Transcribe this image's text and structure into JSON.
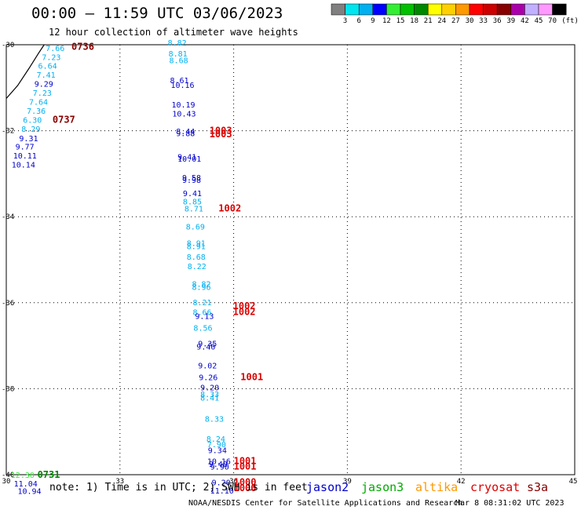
{
  "header": {
    "title": "00:00 — 11:59 UTC 03/06/2023",
    "subtitle": "12 hour collection of altimeter wave heights"
  },
  "colorbar": {
    "unit_label": "(ft)",
    "bins": [
      {
        "label": "3",
        "color": "#808080"
      },
      {
        "label": "6",
        "color": "#00e5ee"
      },
      {
        "label": "9",
        "color": "#00b0f0"
      },
      {
        "label": "12",
        "color": "#0000ff"
      },
      {
        "label": "15",
        "color": "#33ee33"
      },
      {
        "label": "18",
        "color": "#00c000"
      },
      {
        "label": "21",
        "color": "#008800"
      },
      {
        "label": "24",
        "color": "#ffff00"
      },
      {
        "label": "27",
        "color": "#ffd000"
      },
      {
        "label": "30",
        "color": "#ff9900"
      },
      {
        "label": "33",
        "color": "#ff0000"
      },
      {
        "label": "36",
        "color": "#cc0000"
      },
      {
        "label": "39",
        "color": "#880000"
      },
      {
        "label": "42",
        "color": "#aa00aa"
      },
      {
        "label": "45",
        "color": "#c0b0ff"
      },
      {
        "label": "70",
        "color": "#ff99ff"
      },
      {
        "label": "",
        "color": "#000000"
      }
    ]
  },
  "footer": {
    "note": "note: 1) Time is in UTC; 2) SWH is in feet",
    "credit": "NOAA/NESDIS Center for Satellite Applications and Research",
    "timestamp": "Mar  8 08:31:02 UTC 2023"
  },
  "legend": [
    {
      "name": "jason2",
      "color": "#0000cc"
    },
    {
      "name": "jason3",
      "color": "#00aa00"
    },
    {
      "name": "altika",
      "color": "#ff9900"
    },
    {
      "name": "cryosat",
      "color": "#dd0000"
    },
    {
      "name": "s3a",
      "color": "#880000"
    }
  ],
  "chart_data": {
    "type": "scatter",
    "title": "00:00 — 11:59 UTC 03/06/2023",
    "subtitle": "12 hour collection of altimeter wave heights",
    "x_axis": {
      "range": [
        30,
        45
      ],
      "ticks": [
        "30",
        "33",
        "36",
        "39",
        "42",
        "45"
      ]
    },
    "y_axis": {
      "range": [
        -40,
        -30
      ],
      "ticks": [
        "-30",
        "-32",
        "-34",
        "-36",
        "-38",
        "-40"
      ]
    },
    "grid": true,
    "observations": [
      {
        "x": 31.04,
        "y": -30.15,
        "label": "7.66",
        "color": "#00b0f0"
      },
      {
        "x": 30.94,
        "y": -30.36,
        "label": "7.23",
        "color": "#00b0f0"
      },
      {
        "x": 30.84,
        "y": -30.56,
        "label": "6.64",
        "color": "#00b0f0"
      },
      {
        "x": 30.8,
        "y": -30.77,
        "label": "7.41",
        "color": "#00b0f0"
      },
      {
        "x": 30.74,
        "y": -30.98,
        "label": "9.29",
        "color": "#0000cc"
      },
      {
        "x": 30.7,
        "y": -31.19,
        "label": "7.23",
        "color": "#00b0f0"
      },
      {
        "x": 30.6,
        "y": -31.4,
        "label": "7.64",
        "color": "#00b0f0"
      },
      {
        "x": 30.54,
        "y": -31.61,
        "label": "7.36",
        "color": "#00b0f0"
      },
      {
        "x": 30.44,
        "y": -31.82,
        "label": "6.30",
        "color": "#00b0f0"
      },
      {
        "x": 30.4,
        "y": -32.03,
        "label": "8.29",
        "color": "#00b0f0"
      },
      {
        "x": 30.34,
        "y": -32.24,
        "label": "9.31",
        "color": "#0000cc"
      },
      {
        "x": 30.24,
        "y": -32.44,
        "label": "9.77",
        "color": "#0000cc"
      },
      {
        "x": 30.18,
        "y": -32.65,
        "label": "10.11",
        "color": "#0000cc"
      },
      {
        "x": 30.14,
        "y": -32.86,
        "label": "10.14",
        "color": "#0000cc"
      },
      {
        "x": 34.26,
        "y": -30.02,
        "label": "8.82",
        "color": "#00b0f0"
      },
      {
        "x": 34.28,
        "y": -30.27,
        "label": "8.81",
        "color": "#00b0f0"
      },
      {
        "x": 34.3,
        "y": -30.43,
        "label": "8.68",
        "color": "#00b0f0"
      },
      {
        "x": 34.32,
        "y": -30.89,
        "label": "8.61",
        "color": "#0000cc"
      },
      {
        "x": 34.34,
        "y": -31.0,
        "label": "10.16",
        "color": "#0000cc"
      },
      {
        "x": 34.36,
        "y": -31.46,
        "label": "10.19",
        "color": "#0000cc"
      },
      {
        "x": 34.38,
        "y": -31.67,
        "label": "10.43",
        "color": "#0000cc"
      },
      {
        "x": 34.48,
        "y": -32.08,
        "label": "8.44",
        "color": "#0000cc"
      },
      {
        "x": 34.48,
        "y": -32.13,
        "label": "9.88",
        "color": "#0000cc"
      },
      {
        "x": 34.52,
        "y": -32.67,
        "label": "9.41",
        "color": "#0000cc"
      },
      {
        "x": 34.52,
        "y": -32.72,
        "label": "10.01",
        "color": "#0000cc"
      },
      {
        "x": 34.64,
        "y": -33.16,
        "label": "9.58",
        "color": "#0000cc"
      },
      {
        "x": 34.64,
        "y": -33.21,
        "label": "9.98",
        "color": "#0000cc"
      },
      {
        "x": 34.66,
        "y": -33.52,
        "label": "9.41",
        "color": "#0000cc"
      },
      {
        "x": 34.66,
        "y": -33.71,
        "label": "8.85",
        "color": "#00b0f0"
      },
      {
        "x": 34.7,
        "y": -33.88,
        "label": "8.71",
        "color": "#00b0f0"
      },
      {
        "x": 34.74,
        "y": -34.3,
        "label": "8.69",
        "color": "#00b0f0"
      },
      {
        "x": 34.76,
        "y": -34.68,
        "label": "8.91",
        "color": "#00b0f0"
      },
      {
        "x": 34.76,
        "y": -34.75,
        "label": "8.91",
        "color": "#00b0f0"
      },
      {
        "x": 34.76,
        "y": -35.0,
        "label": "8.68",
        "color": "#00b0f0"
      },
      {
        "x": 34.78,
        "y": -35.22,
        "label": "8.22",
        "color": "#00b0f0"
      },
      {
        "x": 34.9,
        "y": -35.63,
        "label": "8.82",
        "color": "#00b0f0"
      },
      {
        "x": 34.9,
        "y": -35.7,
        "label": "8.96",
        "color": "#00b0f0"
      },
      {
        "x": 34.92,
        "y": -36.06,
        "label": "8.21",
        "color": "#00b0f0"
      },
      {
        "x": 34.92,
        "y": -36.29,
        "label": "8.66",
        "color": "#00b0f0"
      },
      {
        "x": 34.98,
        "y": -36.38,
        "label": "9.13",
        "color": "#0000cc"
      },
      {
        "x": 34.94,
        "y": -36.65,
        "label": "8.56",
        "color": "#00b0f0"
      },
      {
        "x": 35.06,
        "y": -37.02,
        "label": "9.35",
        "color": "#0000cc"
      },
      {
        "x": 35.02,
        "y": -37.09,
        "label": "9.40",
        "color": "#0000cc"
      },
      {
        "x": 35.06,
        "y": -37.53,
        "label": "9.02",
        "color": "#0000cc"
      },
      {
        "x": 35.08,
        "y": -37.8,
        "label": "9.26",
        "color": "#0000cc"
      },
      {
        "x": 35.12,
        "y": -38.04,
        "label": "9.20",
        "color": "#0000cc"
      },
      {
        "x": 35.12,
        "y": -38.19,
        "label": "8.33",
        "color": "#00b0f0"
      },
      {
        "x": 35.12,
        "y": -38.28,
        "label": "8.41",
        "color": "#00b0f0"
      },
      {
        "x": 35.24,
        "y": -38.77,
        "label": "8.33",
        "color": "#00b0f0"
      },
      {
        "x": 35.28,
        "y": -39.23,
        "label": "8.24",
        "color": "#00b0f0"
      },
      {
        "x": 35.3,
        "y": -39.36,
        "label": "7.90",
        "color": "#00b0f0"
      },
      {
        "x": 35.32,
        "y": -39.5,
        "label": "9.34",
        "color": "#0000cc"
      },
      {
        "x": 35.3,
        "y": -39.75,
        "label": "10.16",
        "color": "#0000cc"
      },
      {
        "x": 35.34,
        "y": -39.82,
        "label": "9.40",
        "color": "#0000cc"
      },
      {
        "x": 35.38,
        "y": -39.88,
        "label": "9.90",
        "color": "#0000cc"
      },
      {
        "x": 35.42,
        "y": -40.25,
        "label": "9.20",
        "color": "#0000cc"
      },
      {
        "x": 35.38,
        "y": -40.44,
        "label": "11.10",
        "color": "#0000cc"
      },
      {
        "x": 30.12,
        "y": -40.07,
        "label": "12.30",
        "color": "#33ee33"
      },
      {
        "x": 30.2,
        "y": -40.27,
        "label": "11.04",
        "color": "#0000cc"
      },
      {
        "x": 30.3,
        "y": -40.45,
        "label": "10.94",
        "color": "#0000cc"
      }
    ],
    "pass_labels": [
      {
        "x": 31.72,
        "y": -30.12,
        "label": "0736",
        "color": "#880000"
      },
      {
        "x": 31.22,
        "y": -31.82,
        "label": "0737",
        "color": "#880000"
      },
      {
        "x": 30.82,
        "y": -40.07,
        "label": "0731",
        "color": "#008800"
      },
      {
        "x": 35.36,
        "y": -32.07,
        "label": "1003",
        "color": "#dd0000"
      },
      {
        "x": 35.36,
        "y": -32.15,
        "label": "1003",
        "color": "#dd0000"
      },
      {
        "x": 35.6,
        "y": -33.88,
        "label": "1002",
        "color": "#dd0000"
      },
      {
        "x": 35.98,
        "y": -36.15,
        "label": "1002",
        "color": "#dd0000"
      },
      {
        "x": 35.98,
        "y": -36.29,
        "label": "1002",
        "color": "#dd0000"
      },
      {
        "x": 36.18,
        "y": -37.8,
        "label": "1001",
        "color": "#dd0000"
      },
      {
        "x": 36.0,
        "y": -39.75,
        "label": "1001",
        "color": "#dd0000"
      },
      {
        "x": 36.0,
        "y": -39.88,
        "label": "1001",
        "color": "#dd0000"
      },
      {
        "x": 36.0,
        "y": -40.25,
        "label": "1000",
        "color": "#dd0000"
      },
      {
        "x": 36.0,
        "y": -40.38,
        "label": "1000",
        "color": "#dd0000"
      }
    ],
    "track_line": [
      [
        30.0,
        -31.25
      ],
      [
        30.3,
        -30.95
      ],
      [
        30.6,
        -30.55
      ],
      [
        30.85,
        -30.2
      ],
      [
        31.0,
        -30.0
      ]
    ]
  }
}
